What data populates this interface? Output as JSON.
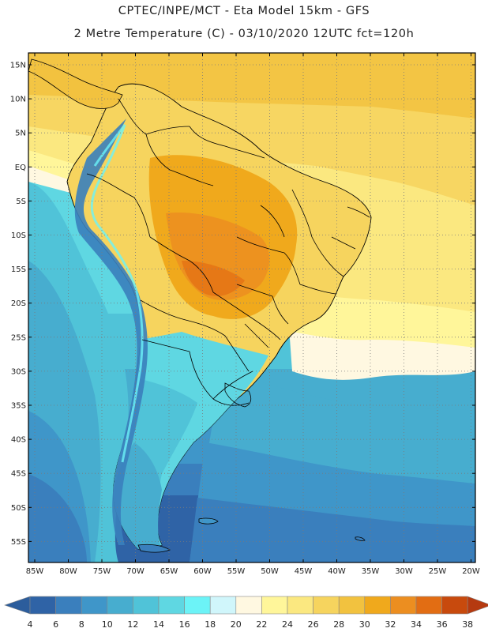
{
  "header": {
    "line1": "CPTEC/INPE/MCT -  Eta Model 15km - GFS",
    "line2": "2 Metre Temperature (C) - 03/10/2020 12UTC fct=120h"
  },
  "map": {
    "lat_labels": [
      "15N",
      "10N",
      "5N",
      "EQ",
      "5S",
      "10S",
      "15S",
      "20S",
      "25S",
      "30S",
      "35S",
      "40S",
      "45S",
      "50S",
      "55S"
    ],
    "lon_labels": [
      "85W",
      "80W",
      "75W",
      "70W",
      "65W",
      "60W",
      "55W",
      "50W",
      "45W",
      "40W",
      "35W",
      "30W",
      "25W",
      "20W"
    ]
  },
  "colorbar": {
    "labels": [
      "4",
      "6",
      "8",
      "10",
      "12",
      "14",
      "16",
      "18",
      "20",
      "22",
      "24",
      "26",
      "28",
      "30",
      "32",
      "34",
      "36",
      "38"
    ],
    "low_color": "#2c5d9c",
    "high_color": "#b53a10",
    "colors": [
      "#2f63a6",
      "#3a7fbd",
      "#3f96c9",
      "#47adcf",
      "#50c3d8",
      "#5fd7e2",
      "#6cf3f7",
      "#d0f6fb",
      "#fff8e1",
      "#fff69a",
      "#fbe880",
      "#f6d45e",
      "#f2c23f",
      "#f0a91c",
      "#ec8e20",
      "#e26d13",
      "#c84a0d"
    ]
  }
}
